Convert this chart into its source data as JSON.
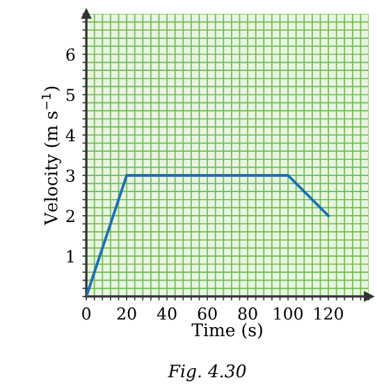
{
  "chart_data": {
    "type": "line",
    "xlabel": "Time (s)",
    "ylabel": "Velocity (m s$^{−1}$)",
    "x": [
      0,
      20,
      100,
      120
    ],
    "series": [
      {
        "color": "#1f6fb5",
        "values": [
          0,
          3,
          3,
          2
        ]
      }
    ],
    "xlim": [
      0,
      140
    ],
    "ylim": [
      0,
      7
    ],
    "xticks": [
      0,
      {
        "value": 4,
        "label": null
      },
      {
        "value": 8,
        "label": null
      },
      {
        "value": 12,
        "label": null
      },
      {
        "value": 16,
        "label": null
      },
      20,
      {
        "value": 24,
        "label": null
      },
      {
        "value": 28,
        "label": null
      },
      {
        "value": 32,
        "label": null
      },
      {
        "value": 36,
        "label": null
      },
      40,
      {
        "value": 44,
        "label": null
      },
      {
        "value": 48,
        "label": null
      },
      {
        "value": 52,
        "label": null
      },
      {
        "value": 56,
        "label": null
      },
      60,
      {
        "value": 64,
        "label": null
      },
      {
        "value": 68,
        "label": null
      },
      {
        "value": 72,
        "label": null
      },
      {
        "value": 76,
        "label": null
      },
      80,
      {
        "value": 84,
        "label": null
      },
      {
        "value": 88,
        "label": null
      },
      {
        "value": 92,
        "label": null
      },
      {
        "value": 96,
        "label": null
      },
      100,
      {
        "value": 104,
        "label": null
      },
      {
        "value": 108,
        "label": null
      },
      {
        "value": 112,
        "label": null
      },
      {
        "value": 116,
        "label": null
      },
      120,
      {
        "value": 124,
        "label": null
      },
      {
        "value": 128,
        "label": null
      },
      {
        "value": 132,
        "label": null
      },
      {
        "value": 136,
        "label": null
      },
      {
        "value": 140,
        "label": null
      }
    ],
    "yticks": [
      {
        "value": 0,
        "label": null
      },
      {
        "value": 0.2,
        "label": null
      },
      {
        "value": 0.4,
        "label": null
      },
      {
        "value": 0.6,
        "label": null
      },
      {
        "value": 0.8,
        "label": null
      },
      1,
      {
        "value": 1.2,
        "label": null
      },
      {
        "value": 1.4,
        "label": null
      },
      {
        "value": 1.6,
        "label": null
      },
      {
        "value": 1.8,
        "label": null
      },
      2,
      {
        "value": 2.2,
        "label": null
      },
      {
        "value": 2.4,
        "label": null
      },
      {
        "value": 2.6,
        "label": null
      },
      {
        "value": 2.8,
        "label": null
      },
      3,
      {
        "value": 3.2,
        "label": null
      },
      {
        "value": 3.4,
        "label": null
      },
      {
        "value": 3.6,
        "label": null
      },
      {
        "value": 3.8,
        "label": null
      },
      4,
      {
        "value": 4.2,
        "label": null
      },
      {
        "value": 4.4,
        "label": null
      },
      {
        "value": 4.6,
        "label": null
      },
      {
        "value": 4.8,
        "label": null
      },
      5,
      {
        "value": 5.2,
        "label": null
      },
      {
        "value": 5.4,
        "label": null
      },
      {
        "value": 5.6,
        "label": null
      },
      {
        "value": 5.8,
        "label": null
      },
      6,
      {
        "value": 6.2,
        "label": null
      },
      {
        "value": 6.4,
        "label": null
      },
      {
        "value": 6.6,
        "label": null
      },
      {
        "value": 6.8,
        "label": null
      },
      {
        "value": 7,
        "label": null
      }
    ],
    "grid": true,
    "marker": "none",
    "line_style": "solid",
    "annotations": [
      "Fig. 4.30"
    ]
  }
}
